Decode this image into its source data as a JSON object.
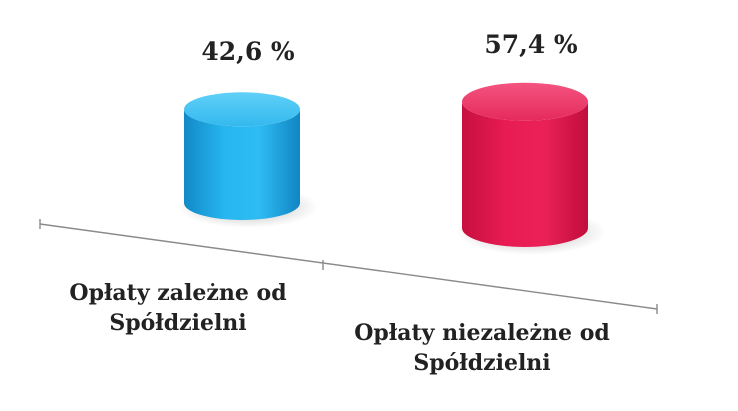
{
  "chart_data": {
    "type": "bar",
    "categories": [
      [
        "Opłaty zależne od",
        "Spółdzielni"
      ],
      [
        "Opłaty niezależne od",
        "Spółdzielni"
      ]
    ],
    "values": [
      42.6,
      57.4
    ],
    "value_labels": [
      "42,6 %",
      "57,4 %"
    ],
    "ylim": [
      0,
      100
    ],
    "bar_style": "3d-cylinder",
    "colors": [
      "#1ea9e6",
      "#e01a4f"
    ],
    "grid": false,
    "legend": "none"
  }
}
